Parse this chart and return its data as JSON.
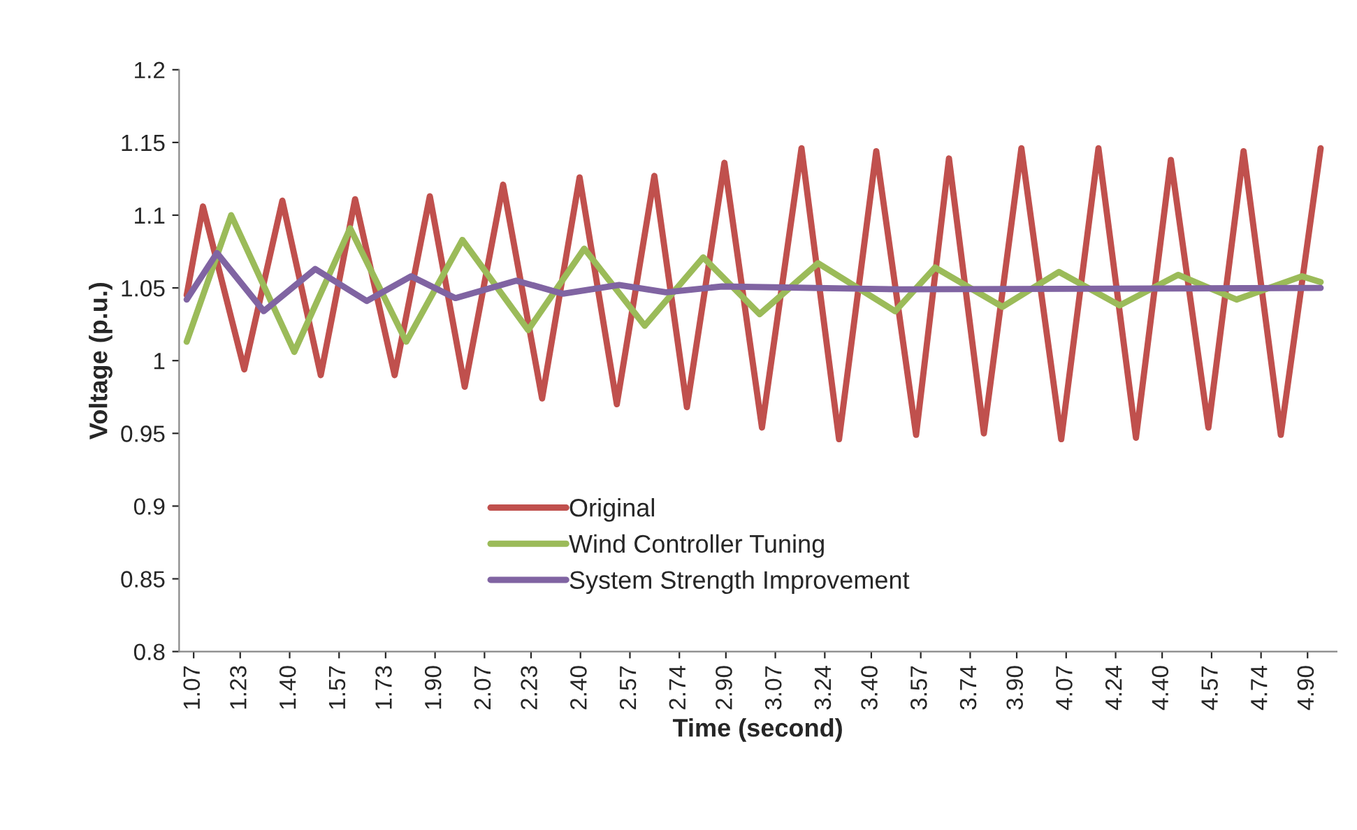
{
  "chart_data": {
    "type": "line",
    "xlabel": "Time (second)",
    "ylabel": "Voltage (p.u.)",
    "xlim": [
      1.02,
      5.0
    ],
    "xticks": [
      1.07,
      1.23,
      {
        "value": 1.4,
        "label": "1.40"
      },
      1.57,
      1.73,
      {
        "value": 1.9,
        "label": "1.90"
      },
      2.07,
      2.23,
      {
        "value": 2.4,
        "label": "2.40"
      },
      2.57,
      2.74,
      {
        "value": 2.9,
        "label": "2.90"
      },
      3.07,
      3.24,
      {
        "value": 3.4,
        "label": "3.40"
      },
      3.57,
      3.74,
      {
        "value": 3.9,
        "label": "3.90"
      },
      4.07,
      4.24,
      {
        "value": 4.4,
        "label": "4.40"
      },
      4.57,
      4.74,
      {
        "value": 4.9,
        "label": "4.90"
      }
    ],
    "ylim": [
      0.8,
      1.2
    ],
    "yticks": [
      0.8,
      0.85,
      0.9,
      0.95,
      1,
      1.05,
      1.1,
      1.15,
      1.2
    ],
    "grid": false,
    "legend": "bottom",
    "marker": "none",
    "line_style": "solid",
    "series": [
      {
        "name": "Original",
        "color": "#c0504d",
        "x": [
          1.046,
          1.102,
          1.244,
          1.375,
          1.507,
          1.625,
          1.761,
          1.882,
          2.002,
          2.134,
          2.268,
          2.397,
          2.525,
          2.654,
          2.766,
          2.895,
          3.024,
          3.16,
          3.289,
          3.417,
          3.554,
          3.667,
          3.787,
          3.916,
          4.053,
          4.181,
          4.31,
          4.43,
          4.559,
          4.68,
          4.808,
          4.945
        ],
        "values": [
          1.045,
          1.106,
          0.994,
          1.11,
          0.99,
          1.111,
          0.99,
          1.113,
          0.982,
          1.121,
          0.974,
          1.126,
          0.97,
          1.127,
          0.968,
          1.136,
          0.954,
          1.146,
          0.946,
          1.144,
          0.949,
          1.139,
          0.95,
          1.146,
          0.946,
          1.146,
          0.947,
          1.138,
          0.954,
          1.144,
          0.949,
          1.146
        ]
      },
      {
        "name": "Wind Controller Tuning",
        "color": "#9bbb59",
        "x": [
          1.046,
          1.199,
          1.416,
          1.608,
          1.801,
          1.994,
          2.22,
          2.413,
          2.621,
          2.822,
          3.016,
          3.217,
          3.482,
          3.619,
          3.851,
          4.045,
          4.254,
          4.455,
          4.656,
          4.881,
          4.945
        ],
        "values": [
          1.013,
          1.1,
          1.006,
          1.091,
          1.013,
          1.083,
          1.021,
          1.077,
          1.024,
          1.071,
          1.032,
          1.067,
          1.034,
          1.064,
          1.037,
          1.061,
          1.038,
          1.059,
          1.042,
          1.058,
          1.054
        ]
      },
      {
        "name": "System Strength Improvement",
        "color": "#8064a2",
        "x": [
          1.046,
          1.15,
          1.311,
          1.488,
          1.665,
          1.818,
          1.97,
          2.179,
          2.34,
          2.533,
          2.694,
          2.887,
          3.5,
          4.945
        ],
        "values": [
          1.042,
          1.074,
          1.034,
          1.063,
          1.041,
          1.058,
          1.043,
          1.055,
          1.046,
          1.052,
          1.047,
          1.051,
          1.049,
          1.05
        ]
      }
    ]
  }
}
